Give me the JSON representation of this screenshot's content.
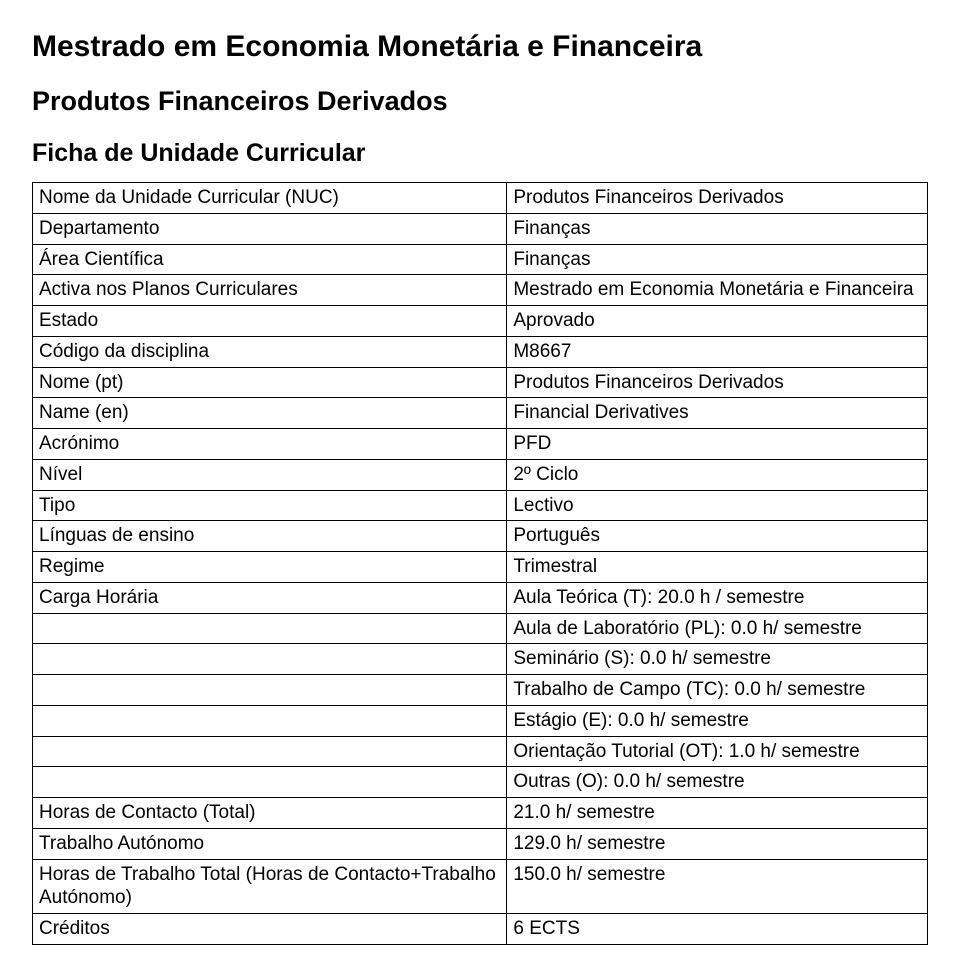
{
  "titles": {
    "main": "Mestrado em Economia Monetária e Financeira",
    "sub": "Produtos Financeiros Derivados",
    "section": "Ficha de Unidade Curricular"
  },
  "table": {
    "rows": [
      {
        "label": "Nome da Unidade Curricular (NUC)",
        "value": "Produtos Financeiros Derivados"
      },
      {
        "label": "Departamento",
        "value": "Finanças"
      },
      {
        "label": "Área Científica",
        "value": "Finanças"
      },
      {
        "label": "Activa nos Planos Curriculares",
        "value": "Mestrado em Economia Monetária e Financeira"
      },
      {
        "label": "Estado",
        "value": "Aprovado"
      },
      {
        "label": "Código da disciplina",
        "value": "M8667"
      },
      {
        "label": "Nome (pt)",
        "value": "Produtos Financeiros Derivados"
      },
      {
        "label": "Name (en)",
        "value": "Financial Derivatives"
      },
      {
        "label": "Acrónimo",
        "value": "PFD"
      },
      {
        "label": "Nível",
        "value": "2º Ciclo"
      },
      {
        "label": "Tipo",
        "value": "Lectivo"
      },
      {
        "label": "Línguas de ensino",
        "value": "Português"
      },
      {
        "label": "Regime",
        "value": "Trimestral"
      },
      {
        "label": "Carga Horária",
        "value": "Aula Teórica (T): 20.0 h / semestre"
      },
      {
        "label": "",
        "value": "Aula de Laboratório (PL): 0.0 h/ semestre"
      },
      {
        "label": "",
        "value": "Seminário (S): 0.0 h/ semestre"
      },
      {
        "label": "",
        "value": "Trabalho de Campo (TC): 0.0 h/ semestre"
      },
      {
        "label": "",
        "value": "Estágio (E): 0.0 h/ semestre"
      },
      {
        "label": "",
        "value": "Orientação Tutorial (OT): 1.0 h/ semestre"
      },
      {
        "label": "",
        "value": "Outras (O): 0.0 h/ semestre"
      },
      {
        "label": "Horas de Contacto (Total)",
        "value": "21.0 h/ semestre"
      },
      {
        "label": "Trabalho Autónomo",
        "value": "129.0 h/ semestre"
      },
      {
        "label": "Horas de Trabalho Total (Horas de Contacto+Trabalho Autónomo)",
        "value": "150.0 h/ semestre"
      },
      {
        "label": "Créditos",
        "value": "6 ECTS"
      }
    ]
  },
  "style": {
    "page_bg": "#ffffff",
    "text_color": "#000000",
    "border_color": "#000000",
    "title_fontsize_pt": 22,
    "sub_fontsize_pt": 20,
    "section_fontsize_pt": 19,
    "body_fontsize_pt": 14,
    "font_family": "Arial"
  }
}
